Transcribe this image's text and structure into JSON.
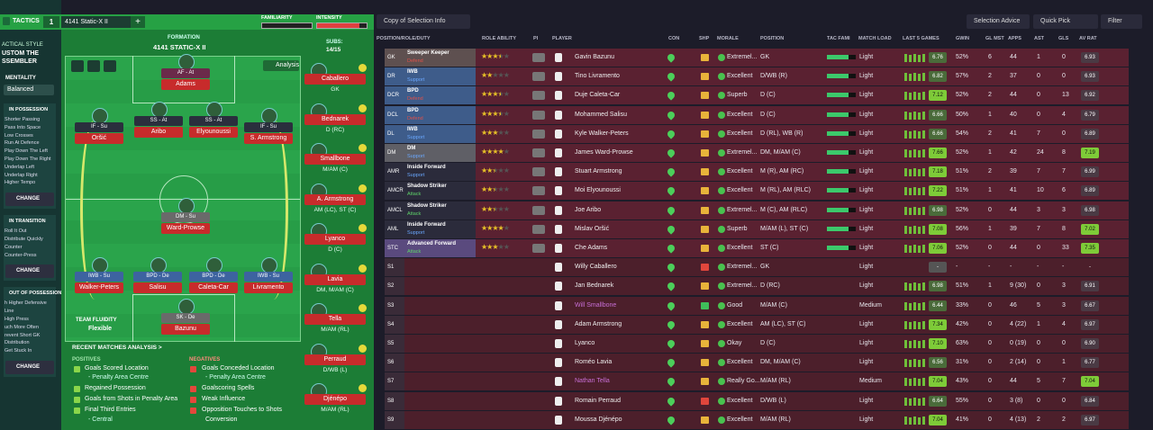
{
  "sidebar": {
    "header": "TACTICS",
    "style_label": "ACTICAL STYLE",
    "style_value": [
      "USTOM THE",
      "SSEMBLER"
    ],
    "mentality_label": "MENTALITY",
    "mentality": "Balanced",
    "sections": [
      {
        "title": "IN POSSESSION",
        "items": [
          "Shorter Passing",
          "Pass Into Space",
          "Low Crosses",
          "Run At Defence",
          "Play Down The Left",
          "Play Down The Right",
          "Underlap Left",
          "Underlap Right",
          "Higher Tempo"
        ],
        "button": "CHANGE"
      },
      {
        "title": "IN TRANSITION",
        "items": [
          "Roll It Out",
          "Distribute Quickly",
          "Counter",
          "Counter-Press"
        ],
        "button": "CHANGE"
      },
      {
        "title": "OUT OF POSSESSION",
        "items": [
          "h Higher Defensive",
          "Line",
          "High Press",
          "uch More Often",
          "revent Short GK",
          "Distribution",
          "Get Stuck In"
        ],
        "button": "CHANGE"
      }
    ]
  },
  "tactic": {
    "slot": "1",
    "name": "4141 Static-X II",
    "add": "+",
    "familiarity": "FAMILIARITY",
    "intensity": "INTENSITY",
    "formation_label": "FORMATION",
    "formation": "4141 STATIC-X II",
    "subs_label": "SUBS:",
    "subs_count": "14/15",
    "analysis": "Analysis",
    "fluidity_label": "TEAM FLUIDITY",
    "fluidity": "Flexible"
  },
  "pitch": [
    {
      "role": "AF - At",
      "name": "Adams",
      "color": "#6b2a4a"
    },
    {
      "role": "IF - Su",
      "name": "Oršić",
      "color": "#2a2f3d"
    },
    {
      "role": "SS - At",
      "name": "Aribo",
      "color": "#2a2f3d"
    },
    {
      "role": "SS - At",
      "name": "Elyounoussi",
      "color": "#2a2f3d"
    },
    {
      "role": "IF - Su",
      "name": "S. Armstrong",
      "color": "#2a2f3d"
    },
    {
      "role": "DM - Su",
      "name": "Ward-Prowse",
      "color": "#6a6a6a"
    },
    {
      "role": "IWB - Su",
      "name": "Walker-Peters",
      "color": "#3d63a0"
    },
    {
      "role": "BPD - De",
      "name": "Salisu",
      "color": "#3d63a0"
    },
    {
      "role": "BPD - De",
      "name": "Caleta-Car",
      "color": "#3d63a0"
    },
    {
      "role": "IWB - Su",
      "name": "Livramento",
      "color": "#3d63a0"
    },
    {
      "role": "SK - De",
      "name": "Bazunu",
      "color": "#6a6a6a"
    }
  ],
  "subs": [
    {
      "name": "Caballero",
      "position": "GK"
    },
    {
      "name": "Bednarek",
      "position": "D (RC)"
    },
    {
      "name": "Smallbone",
      "position": "M/AM (C)"
    },
    {
      "name": "A. Armstrong",
      "position": "AM (LC), ST (C)"
    },
    {
      "name": "Lyanco",
      "position": "D (C)"
    },
    {
      "name": "Lavia",
      "position": "DM, M/AM (C)"
    },
    {
      "name": "Tella",
      "position": "M/AM (RL)"
    },
    {
      "name": "Perraud",
      "position": "D/WB (L)"
    },
    {
      "name": "Djénépo",
      "position": "M/AM (RL)"
    }
  ],
  "analysis": {
    "title": "RECENT MATCHES ANALYSIS >",
    "positives_label": "POSITIVES",
    "positives": [
      "Goals Scored Location",
      "- Penalty Area Centre",
      "Regained Possession",
      "Goals from Shots in Penalty Area",
      "Final Third Entries",
      "- Central"
    ],
    "negatives_label": "NEGATIVES",
    "negatives": [
      "Goals Conceded Location",
      "- Penalty Area Centre",
      "Goalscoring Spells",
      "Weak Influence",
      "Opposition Touches to Shots",
      "Conversion"
    ]
  },
  "toolbar": {
    "view": "Copy of Selection Info",
    "advice": "Selection Advice",
    "quick_pick": "Quick Pick",
    "filter": "Filter"
  },
  "table": {
    "columns": [
      "POSITION/ROLE/DUTY",
      "ROLE ABILITY",
      "PI",
      "PLAYER",
      "CON",
      "SHP",
      "MORALE",
      "POSITION",
      "TAC FAMI",
      "MATCH LOAD",
      "LAST 5 GAMES",
      "GWIN",
      "GL MST",
      "APPS",
      "AST",
      "GLS",
      "AV RAT"
    ],
    "rows": [
      {
        "slot": "GK",
        "role": "Sweeper Keeper",
        "duty": "Defend",
        "duty_color": "#e0504a",
        "slot_color": "#5e5050",
        "ability": 3.5,
        "player": "Gavin Bazunu",
        "morale": "Extremel...",
        "position": "GK",
        "match_load": "Light",
        "form": "6.76",
        "gwin": "52%",
        "glmst": "6",
        "apps": "44",
        "ast": "1",
        "gls": "0",
        "av_rat": "6.93"
      },
      {
        "slot": "DR",
        "role": "IWB",
        "duty": "Support",
        "duty_color": "#6aa8ff",
        "slot_color": "#3e5c8a",
        "ability": 2,
        "player": "Tino Livramento",
        "morale": "Excellent",
        "position": "D/WB (R)",
        "match_load": "Light",
        "form": "6.82",
        "gwin": "57%",
        "glmst": "2",
        "apps": "37",
        "ast": "0",
        "gls": "0",
        "av_rat": "6.93"
      },
      {
        "slot": "DCR",
        "role": "BPD",
        "duty": "Defend",
        "duty_color": "#e0504a",
        "slot_color": "#3e5c8a",
        "ability": 3.5,
        "player": "Duje Caleta-Car",
        "morale": "Superb",
        "position": "D (C)",
        "match_load": "Light",
        "form": "7.12",
        "gwin": "52%",
        "glmst": "2",
        "apps": "44",
        "ast": "0",
        "gls": "13",
        "av_rat": "6.92"
      },
      {
        "slot": "DCL",
        "role": "BPD",
        "duty": "Defend",
        "duty_color": "#e0504a",
        "slot_color": "#3e5c8a",
        "ability": 3.5,
        "player": "Mohammed Salisu",
        "morale": "Excellent",
        "position": "D (C)",
        "match_load": "Light",
        "form": "6.66",
        "gwin": "50%",
        "glmst": "1",
        "apps": "40",
        "ast": "0",
        "gls": "4",
        "av_rat": "6.79"
      },
      {
        "slot": "DL",
        "role": "IWB",
        "duty": "Support",
        "duty_color": "#6aa8ff",
        "slot_color": "#3e5c8a",
        "ability": 3,
        "player": "Kyle Walker-Peters",
        "morale": "Excellent",
        "position": "D (RL), WB (R)",
        "match_load": "Light",
        "form": "6.66",
        "gwin": "54%",
        "glmst": "2",
        "apps": "41",
        "ast": "7",
        "gls": "0",
        "av_rat": "6.89"
      },
      {
        "slot": "DM",
        "role": "DM",
        "duty": "Support",
        "duty_color": "#6aa8ff",
        "slot_color": "#5f5f66",
        "ability": 4,
        "player": "James Ward-Prowse",
        "morale": "Extremel...",
        "position": "DM, M/AM (C)",
        "match_load": "Light",
        "form": "7.66",
        "gwin": "52%",
        "glmst": "1",
        "apps": "42",
        "ast": "24",
        "gls": "8",
        "av_rat": "7.19"
      },
      {
        "slot": "AMR",
        "role": "Inside Forward",
        "duty": "Support",
        "duty_color": "#6aa8ff",
        "slot_color": "#2b2b3b",
        "ability": 2.5,
        "player": "Stuart Armstrong",
        "morale": "Excellent",
        "position": "M (R), AM (RC)",
        "match_load": "Light",
        "form": "7.18",
        "gwin": "51%",
        "glmst": "2",
        "apps": "39",
        "ast": "7",
        "gls": "7",
        "av_rat": "6.99"
      },
      {
        "slot": "AMCR",
        "role": "Shadow Striker",
        "duty": "Attack",
        "duty_color": "#5fd36a",
        "slot_color": "#2b2b3b",
        "ability": 2.5,
        "player": "Moi Elyounoussi",
        "morale": "Excellent",
        "position": "M (RL), AM (RLC)",
        "match_load": "Light",
        "form": "7.22",
        "gwin": "51%",
        "glmst": "1",
        "apps": "41",
        "ast": "10",
        "gls": "6",
        "av_rat": "6.89"
      },
      {
        "slot": "AMCL",
        "role": "Shadow Striker",
        "duty": "Attack",
        "duty_color": "#5fd36a",
        "slot_color": "#2b2b3b",
        "ability": 2.5,
        "player": "Joe Aribo",
        "morale": "Extremel...",
        "position": "M (C), AM (RLC)",
        "match_load": "Light",
        "form": "6.98",
        "gwin": "52%",
        "glmst": "0",
        "apps": "44",
        "ast": "3",
        "gls": "3",
        "av_rat": "6.98"
      },
      {
        "slot": "AML",
        "role": "Inside Forward",
        "duty": "Support",
        "duty_color": "#6aa8ff",
        "slot_color": "#2b2b3b",
        "ability": 4,
        "player": "Mislav Oršić",
        "morale": "Superb",
        "position": "M/AM (L), ST (C)",
        "match_load": "Light",
        "form": "7.08",
        "gwin": "56%",
        "glmst": "1",
        "apps": "39",
        "ast": "7",
        "gls": "8",
        "av_rat": "7.02"
      },
      {
        "slot": "STC",
        "role": "Advanced Forward",
        "duty": "Attack",
        "duty_color": "#5fd36a",
        "slot_color": "#5a4a7e",
        "ability": 3,
        "player": "Che Adams",
        "morale": "Excellent",
        "position": "ST (C)",
        "match_load": "Light",
        "form": "7.06",
        "gwin": "52%",
        "glmst": "0",
        "apps": "44",
        "ast": "0",
        "gls": "33",
        "av_rat": "7.35"
      },
      {
        "slot": "S1",
        "player": "Willy Caballero",
        "morale": "Extremel...",
        "position": "GK",
        "match_load": "Light",
        "form": "-",
        "gwin": "-",
        "glmst": "-",
        "apps": "-",
        "ast": "-",
        "gls": "-",
        "av_rat": "-"
      },
      {
        "slot": "S2",
        "player": "Jan Bednarek",
        "morale": "Extremel...",
        "position": "D (RC)",
        "match_load": "Light",
        "form": "6.98",
        "gwin": "51%",
        "glmst": "1",
        "apps": "9 (30)",
        "ast": "0",
        "gls": "3",
        "av_rat": "6.91"
      },
      {
        "slot": "S3",
        "player": "Will Smallbone",
        "player_color": "#c86fd6",
        "morale": "Good",
        "position": "M/AM (C)",
        "match_load": "Medium",
        "form": "6.44",
        "gwin": "33%",
        "glmst": "0",
        "apps": "46",
        "ast": "5",
        "gls": "3",
        "av_rat": "6.67"
      },
      {
        "slot": "S4",
        "player": "Adam Armstrong",
        "morale": "Excellent",
        "position": "AM (LC), ST (C)",
        "match_load": "Light",
        "form": "7.34",
        "gwin": "42%",
        "glmst": "0",
        "apps": "4 (22)",
        "ast": "1",
        "gls": "4",
        "av_rat": "6.97"
      },
      {
        "slot": "S5",
        "player": "Lyanco",
        "morale": "Okay",
        "position": "D (C)",
        "match_load": "Light",
        "form": "7.10",
        "gwin": "63%",
        "glmst": "0",
        "apps": "0 (19)",
        "ast": "0",
        "gls": "0",
        "av_rat": "6.90"
      },
      {
        "slot": "S6",
        "player": "Roméo Lavia",
        "morale": "Excellent",
        "position": "DM, M/AM (C)",
        "match_load": "Light",
        "form": "6.56",
        "gwin": "31%",
        "glmst": "0",
        "apps": "2 (14)",
        "ast": "0",
        "gls": "1",
        "av_rat": "6.77"
      },
      {
        "slot": "S7",
        "player": "Nathan Tella",
        "player_color": "#c86fd6",
        "morale": "Really Go...",
        "position": "M/AM (RL)",
        "match_load": "Medium",
        "form": "7.04",
        "gwin": "43%",
        "glmst": "0",
        "apps": "44",
        "ast": "5",
        "gls": "7",
        "av_rat": "7.04"
      },
      {
        "slot": "S8",
        "player": "Romain Perraud",
        "morale": "Excellent",
        "position": "D/WB (L)",
        "match_load": "Light",
        "form": "6.64",
        "gwin": "55%",
        "glmst": "0",
        "apps": "3 (8)",
        "ast": "0",
        "gls": "0",
        "av_rat": "6.84"
      },
      {
        "slot": "S9",
        "player": "Moussa Djénépo",
        "morale": "Excellent",
        "position": "M/AM (RL)",
        "match_load": "Light",
        "form": "7.04",
        "gwin": "41%",
        "glmst": "0",
        "apps": "4 (13)",
        "ast": "2",
        "gls": "2",
        "av_rat": "6.97"
      }
    ]
  }
}
